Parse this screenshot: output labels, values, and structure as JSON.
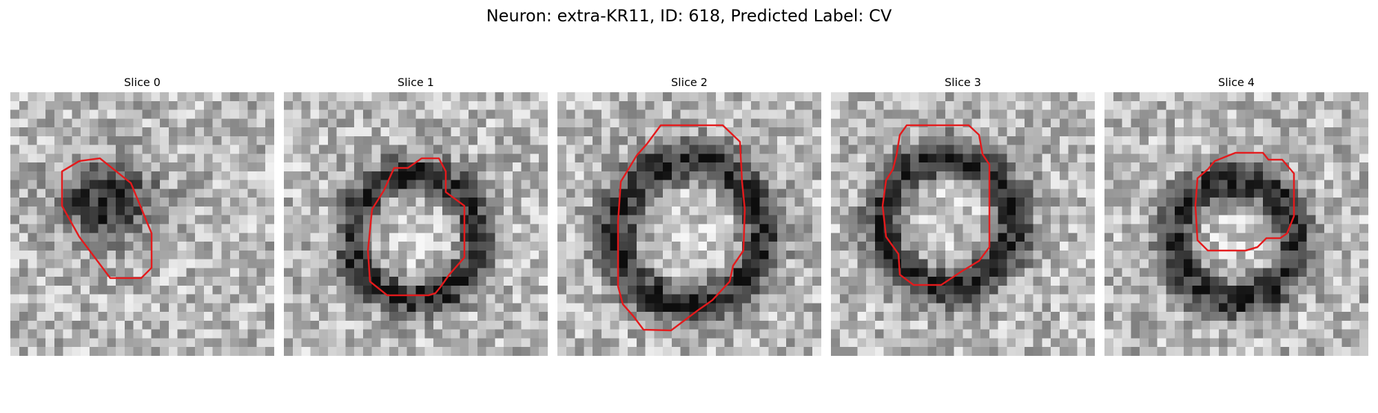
{
  "figure": {
    "title": "Neuron: extra-KR11, ID: 618, Predicted Label: CV"
  },
  "slices": [
    {
      "title": "Slice 0",
      "contour_color": "#e41a1c"
    },
    {
      "title": "Slice 1",
      "contour_color": "#e41a1c"
    },
    {
      "title": "Slice 2",
      "contour_color": "#e41a1c"
    },
    {
      "title": "Slice 3",
      "contour_color": "#e41a1c"
    },
    {
      "title": "Slice 4",
      "contour_color": "#e41a1c"
    }
  ]
}
